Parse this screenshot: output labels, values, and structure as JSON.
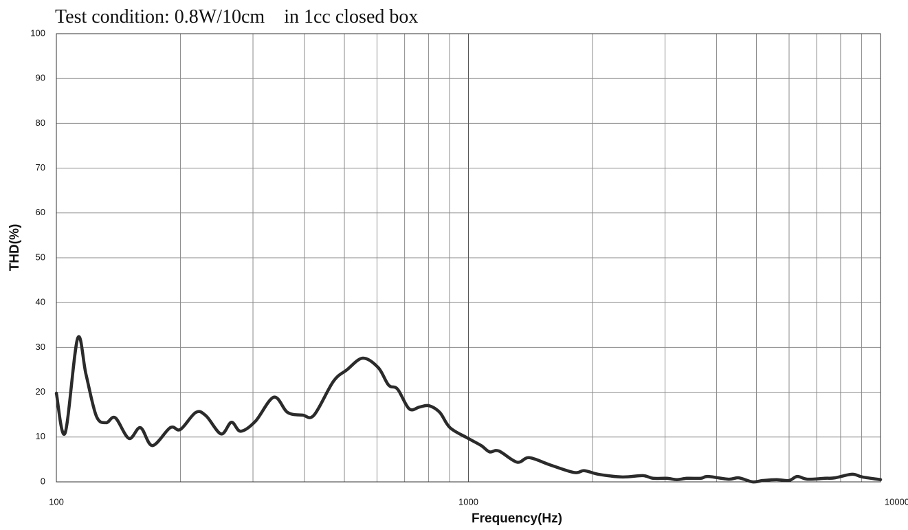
{
  "chart_data": {
    "type": "line",
    "title": "Test condition: 0.8W/10cm    in 1cc closed box",
    "xlabel": "Frequency(Hz)",
    "ylabel": "THD(%)",
    "xscale": "log",
    "xlim": [
      100,
      10000
    ],
    "xticks": [
      100,
      1000,
      10000
    ],
    "xminor": [
      200,
      300,
      400,
      500,
      600,
      700,
      800,
      900,
      2000,
      3000,
      4000,
      5000,
      6000,
      7000,
      8000,
      9000
    ],
    "ylim": [
      0,
      100
    ],
    "yticks": [
      0,
      10,
      20,
      30,
      40,
      50,
      60,
      70,
      80,
      90,
      100
    ],
    "grid": true,
    "series": [
      {
        "color": "#2b2b2b",
        "x": [
          100,
          105,
          112.6,
          118,
          125,
          132,
          139,
          150,
          160,
          171,
          189,
          200,
          218,
          231,
          251,
          266,
          280,
          304,
          337,
          364,
          396,
          422,
          470,
          507,
          554,
          604,
          640,
          673,
          718,
          761,
          802,
          852,
          902,
          994,
          1074,
          1125,
          1185,
          1312,
          1404,
          1577,
          1804,
          1912,
          2067,
          2363,
          2648,
          2804,
          3029,
          3204,
          3393,
          3667,
          3813,
          4278,
          4530,
          4894,
          5181,
          5594,
          5994,
          6280,
          6650,
          7322,
          7753,
          8528,
          9028,
          10000
        ],
        "values": [
          19.8,
          10.9,
          32,
          24,
          14.7,
          13.2,
          14.3,
          9.7,
          12.1,
          8.1,
          12.1,
          11.7,
          15.5,
          14.7,
          10.7,
          13.3,
          11.3,
          13.5,
          18.9,
          15.5,
          14.9,
          14.9,
          22.4,
          25.0,
          27.6,
          25.5,
          21.6,
          20.7,
          16.3,
          16.7,
          17.0,
          15.5,
          12.1,
          9.8,
          8.1,
          6.7,
          6.9,
          4.4,
          5.4,
          3.8,
          2.1,
          2.5,
          1.7,
          1.1,
          1.4,
          0.8,
          0.8,
          0.5,
          0.8,
          0.8,
          1.2,
          0.6,
          0.9,
          0,
          0.3,
          0.5,
          0.3,
          1.2,
          0.6,
          0.8,
          0.9,
          1.7,
          1.1,
          0.5
        ]
      }
    ]
  }
}
